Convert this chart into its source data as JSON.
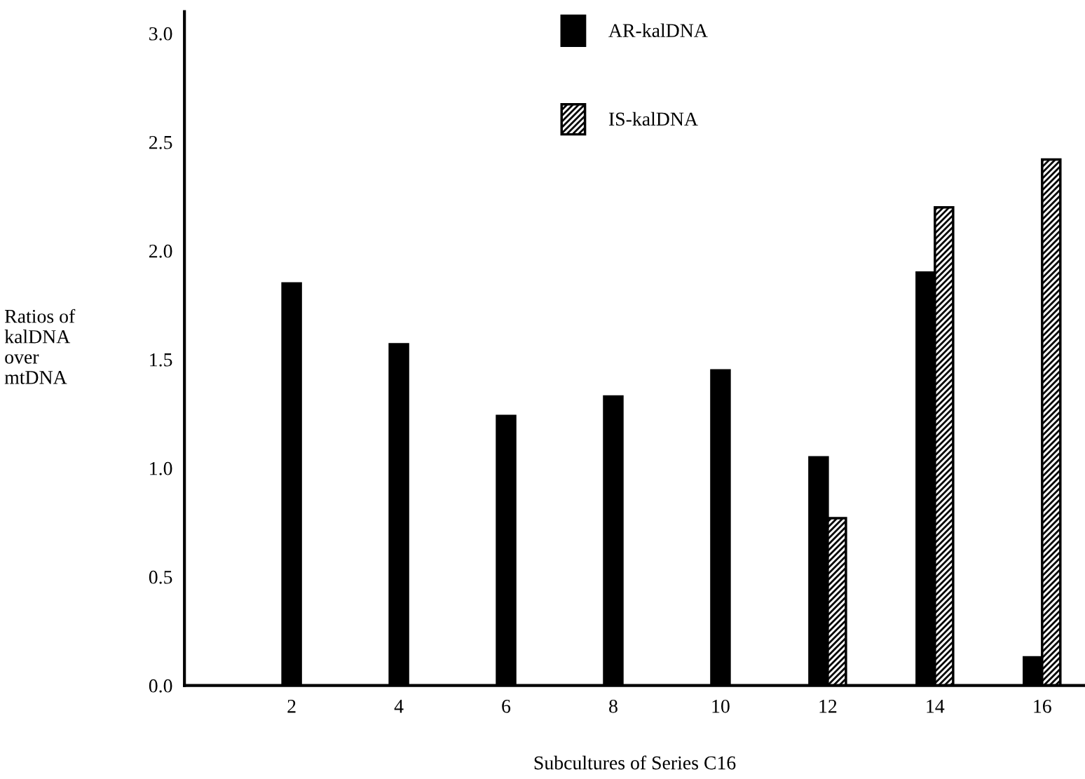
{
  "chart_data": {
    "type": "bar",
    "xlabel": "Subcultures of Series C16",
    "ylabel": "Ratios of\nkalDNA\nover\nmtDNA",
    "categories": [
      "2",
      "4",
      "6",
      "8",
      "10",
      "12",
      "14",
      "16"
    ],
    "series": [
      {
        "name": "AR-kalDNA",
        "color": "#000000",
        "values": [
          1.85,
          1.57,
          1.24,
          1.33,
          1.45,
          1.05,
          1.9,
          0.13
        ]
      },
      {
        "name": "IS-kalDNA",
        "color": "#000000",
        "values": [
          null,
          null,
          null,
          null,
          null,
          0.77,
          2.2,
          2.42
        ]
      }
    ],
    "ylim": [
      0,
      3.1
    ],
    "yticks": [
      {
        "value": 0,
        "label": "0.0"
      },
      {
        "value": 0.5,
        "label": "0.5"
      },
      {
        "value": 1,
        "label": "1.0"
      },
      {
        "value": 1.5,
        "label": "1.5"
      },
      {
        "value": 2,
        "label": "2.0"
      },
      {
        "value": 2.5,
        "label": "2.5"
      },
      {
        "value": 3,
        "label": "3.0"
      }
    ],
    "grid": false,
    "legend": "top"
  }
}
